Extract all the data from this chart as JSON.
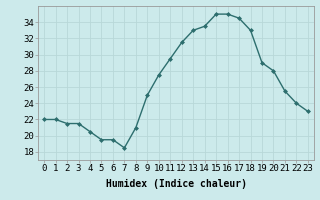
{
  "x": [
    0,
    1,
    2,
    3,
    4,
    5,
    6,
    7,
    8,
    9,
    10,
    11,
    12,
    13,
    14,
    15,
    16,
    17,
    18,
    19,
    20,
    21,
    22,
    23
  ],
  "y": [
    22,
    22,
    21.5,
    21.5,
    20.5,
    19.5,
    19.5,
    18.5,
    21,
    25,
    27.5,
    29.5,
    31.5,
    33,
    33.5,
    35,
    35,
    34.5,
    33,
    29,
    28,
    25.5,
    24,
    23
  ],
  "line_color": "#2d6e6e",
  "marker": "D",
  "markersize": 2.0,
  "linewidth": 1.0,
  "bg_color": "#cceaeb",
  "grid_color": "#b8d8d8",
  "xlabel": "Humidex (Indice chaleur)",
  "ylim": [
    17,
    36
  ],
  "yticks": [
    18,
    20,
    22,
    24,
    26,
    28,
    30,
    32,
    34
  ],
  "xlim": [
    -0.5,
    23.5
  ],
  "xlabel_fontsize": 7,
  "tick_fontsize": 6.5
}
